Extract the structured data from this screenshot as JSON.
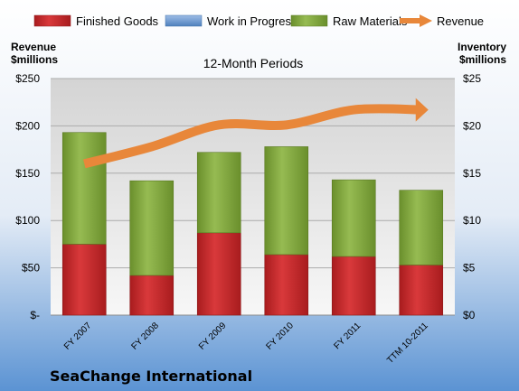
{
  "chart_data": {
    "type": "bar",
    "subtitle": "12-Month Periods",
    "company": "SeaChange International",
    "left_axis_title": [
      "Revenue",
      "$millions"
    ],
    "right_axis_title": [
      "Inventory",
      "$millions"
    ],
    "categories": [
      "FY 2007",
      "FY 2008",
      "FY 2009",
      "FY 2010",
      "FY 2011",
      "TTM 10-2011"
    ],
    "series": [
      {
        "name": "Finished Goods",
        "axis": "right",
        "stack": "inventory",
        "values": [
          7.5,
          4.2,
          8.7,
          6.4,
          6.2,
          5.3
        ]
      },
      {
        "name": "Work in Progress",
        "axis": "right",
        "stack": "inventory",
        "values": [
          0,
          0,
          0,
          0,
          0,
          0
        ]
      },
      {
        "name": "Raw Materials",
        "axis": "right",
        "stack": "inventory",
        "values": [
          11.8,
          10.0,
          8.5,
          11.4,
          8.1,
          7.9
        ]
      },
      {
        "name": "Revenue",
        "axis": "left",
        "type": "line",
        "values": [
          160,
          178,
          201,
          201,
          217,
          217
        ]
      }
    ],
    "left_axis": {
      "range": [
        0,
        250
      ],
      "ticks": [
        "$-",
        "$50",
        "$100",
        "$150",
        "$200",
        "$250"
      ]
    },
    "right_axis": {
      "range": [
        0,
        25
      ],
      "ticks": [
        "$0",
        "$5",
        "$10",
        "$15",
        "$20",
        "$25"
      ]
    },
    "legend_position": "top",
    "grid": true,
    "colors": {
      "finished_goods": "#c0282a",
      "work_in_progress": "#4f81bd",
      "raw_materials": "#7fa33a",
      "revenue": "#e8873a"
    }
  }
}
